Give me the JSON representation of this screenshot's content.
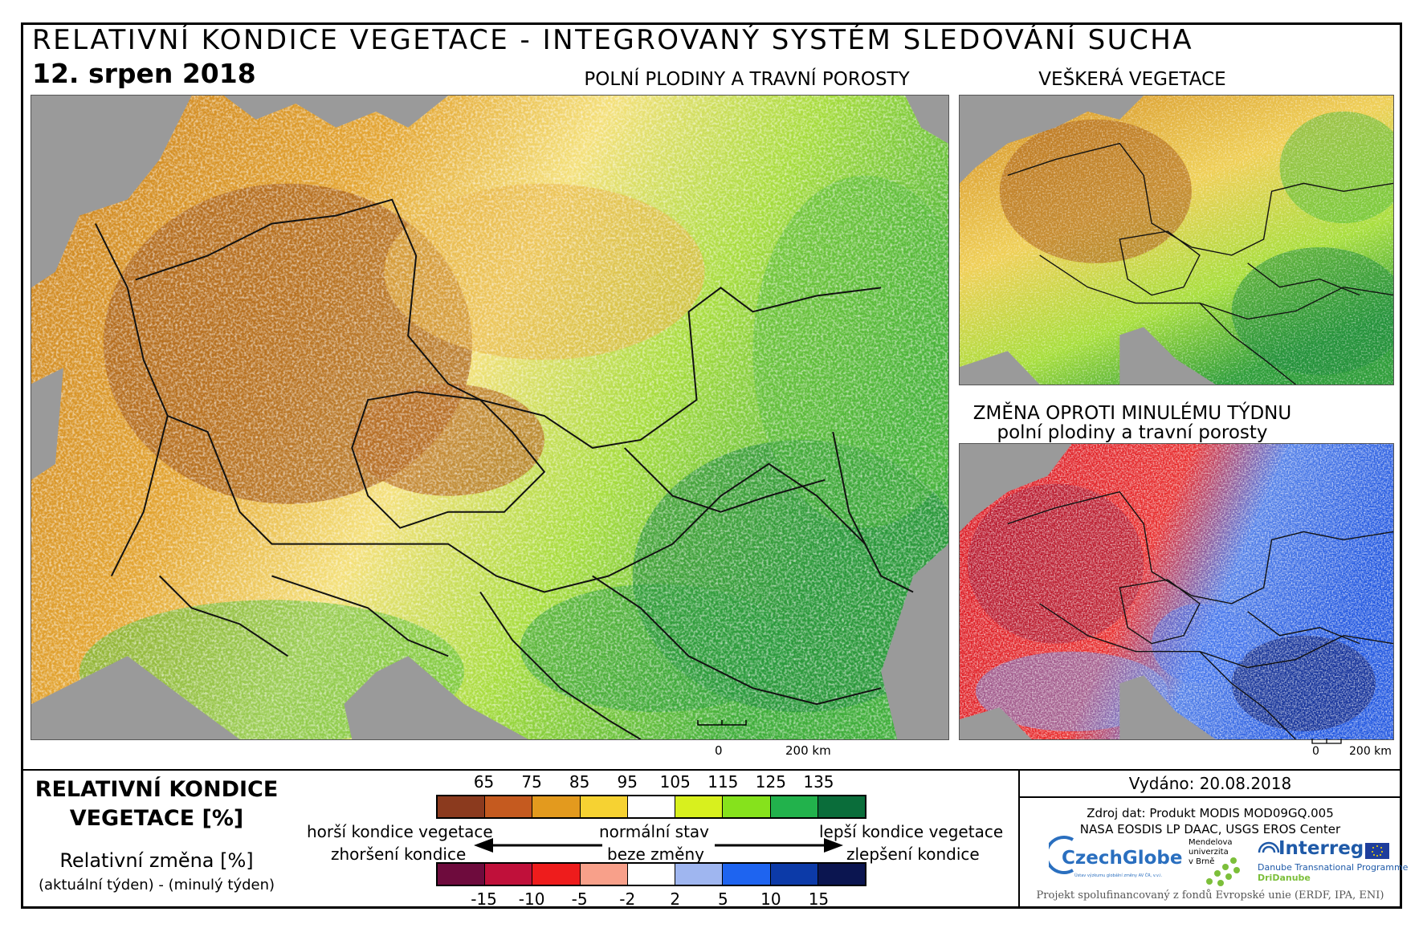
{
  "header": {
    "title": "RELATIVNÍ KONDICE VEGETACE - INTEGROVANÝ SYSTÉM SLEDOVÁNÍ SUCHA",
    "date": "12. srpen 2018"
  },
  "maps": {
    "main_label": "POLNÍ PLODINY A TRAVNÍ POROSTY",
    "all_label": "VEŠKERÁ VEGETACE",
    "change_label_1": "ZMĚNA OPROTI MINULÉMU TÝDNU",
    "change_label_2": "polní plodiny a travní porosty",
    "scale_zero": "0",
    "scale_end": "200 km"
  },
  "legend": {
    "title_1": "RELATIVNÍ KONDICE",
    "title_2": "VEGETACE [%]",
    "change_title": "Relativní změna [%]",
    "change_sub": "(aktuální týden) - (minulý týden)",
    "condition_ticks": [
      "65",
      "75",
      "85",
      "95",
      "105",
      "115",
      "125",
      "135"
    ],
    "condition_colors": [
      "#8b3a1e",
      "#c55a1f",
      "#e39a1e",
      "#f6d232",
      "#ffffff",
      "#d8f01e",
      "#86e21c",
      "#22b24c",
      "#0a6d3a"
    ],
    "change_ticks": [
      "-15",
      "-10",
      "-5",
      "-2",
      "2",
      "5",
      "10",
      "15"
    ],
    "change_colors": [
      "#6e0b3d",
      "#c0103a",
      "#ee1c1c",
      "#f8a08a",
      "#ffffff",
      "#9fb6f0",
      "#1e64f0",
      "#0c3aa8",
      "#0b1550"
    ],
    "worse": "horší kondice vegetace",
    "normal": "normální stav",
    "better": "lepší kondice vegetace",
    "worsened": "zhoršení kondice",
    "no_change": "beze změny",
    "improved": "zlepšení kondice"
  },
  "info": {
    "issued": "Vydáno: 20.08.2018",
    "source_1": "Zdroj dat: Produkt MODIS MOD09GQ.005",
    "source_2": "NASA EOSDIS LP DAAC, USGS EROS Center",
    "logo_czechglobe": "CzechGlobe",
    "logo_czechglobe_sub": "Ústav výzkumu globální změny AV ČR, v.v.i.",
    "logo_mendel_1": "Mendelova",
    "logo_mendel_2": "univerzita",
    "logo_mendel_3": "v Brně",
    "logo_interreg": "Interreg",
    "logo_interreg_sub": "Danube Transnational Programme",
    "logo_dridanube": "DriDanube",
    "funding": "Projekt spolufinancovaný z fondů Evropské unie (ERDF, IPA, ENI)"
  }
}
